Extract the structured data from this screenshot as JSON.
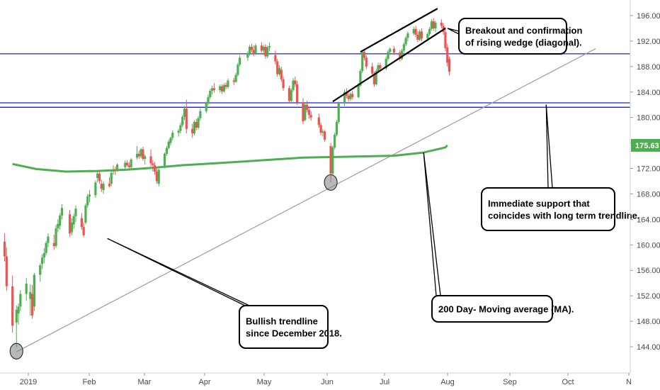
{
  "chart_data": {
    "type": "candlestick",
    "y_axis": {
      "range": [
        141.5,
        198.5
      ],
      "ticks": [
        "196.00",
        "192.00",
        "188.00",
        "184.00",
        "180.00",
        "176.00",
        "172.00",
        "168.00",
        "164.00",
        "160.00",
        "156.00",
        "152.00",
        "148.00",
        "144.00"
      ],
      "side": "right"
    },
    "x_axis": {
      "ticks": [
        "2019",
        "Feb",
        "Mar",
        "Apr",
        "May",
        "Jun",
        "Jul",
        "Aug",
        "Sep",
        "Oct",
        "N"
      ]
    },
    "current_price": {
      "label": "175.63",
      "value": 175.63,
      "color": "#4caf50"
    },
    "colors": {
      "up": "#4caf50",
      "down": "#ef5350",
      "horizontal_lines": "#1e22d6",
      "ma": "#4caf50",
      "trendline": "#9e9e9e"
    },
    "horizontal_levels": [
      190.0,
      182.3,
      181.6
    ],
    "moving_average": {
      "name": "200 Day- Moving average (MA)",
      "points": [
        [
          "2018-12-24",
          172.7
        ],
        [
          "2019-01-05",
          171.9
        ],
        [
          "2019-01-20",
          171.5
        ],
        [
          "2019-02-05",
          171.6
        ],
        [
          "2019-02-20",
          171.8
        ],
        [
          "2019-03-05",
          172.1
        ],
        [
          "2019-03-20",
          172.5
        ],
        [
          "2019-04-05",
          172.8
        ],
        [
          "2019-04-20",
          173.1
        ],
        [
          "2019-05-05",
          173.4
        ],
        [
          "2019-05-20",
          173.7
        ],
        [
          "2019-06-05",
          173.8
        ],
        [
          "2019-06-20",
          173.9
        ],
        [
          "2019-07-05",
          174.0
        ],
        [
          "2019-07-20",
          174.5
        ],
        [
          "2019-07-31",
          175.3
        ],
        [
          "2019-08-01",
          175.63
        ]
      ]
    },
    "trendline": {
      "from": [
        "2018-12-26",
        143.2
      ],
      "to": [
        "2019-10-15",
        190.8
      ],
      "label": "Bullish trendline since December 2018."
    },
    "rising_wedge": {
      "upper": [
        [
          "2019-06-18",
          190.3
        ],
        [
          "2019-07-27",
          197.1
        ]
      ],
      "lower": [
        [
          "2019-06-04",
          182.5
        ],
        [
          "2019-07-31",
          194.0
        ]
      ]
    },
    "highlight_circles": [
      [
        "2018-12-26",
        143.3
      ],
      [
        "2019-06-03",
        169.8
      ]
    ],
    "annotations": [
      {
        "id": "wedge",
        "lines": [
          "Breakout and confirmation",
          "of rising wedge (diagonal)."
        ],
        "pointer": [
          "2019-07-31",
          194.0
        ]
      },
      {
        "id": "support",
        "lines": [
          "Immediate support that",
          "coincides with long term trendline."
        ],
        "pointer": [
          "2019-09-20",
          182.0
        ]
      },
      {
        "id": "ma",
        "lines": [
          "200 Day- Moving average (MA)."
        ],
        "pointer": [
          "2019-07-20",
          174.5
        ]
      },
      {
        "id": "trend",
        "lines": [
          "Bullish trendline",
          "since December 2018."
        ],
        "pointer": [
          "2019-02-10",
          161.0
        ]
      }
    ],
    "candles": [
      [
        "2018-12-20",
        160.5,
        161.8,
        157.4,
        158.2
      ],
      [
        "2018-12-21",
        158.2,
        159.6,
        152.8,
        153.5
      ],
      [
        "2018-12-24",
        153.5,
        155.2,
        146.2,
        147.3
      ],
      [
        "2018-12-26",
        147.8,
        150.5,
        143.9,
        149.8
      ],
      [
        "2018-12-27",
        149.2,
        150.8,
        147.5,
        150.3
      ],
      [
        "2018-12-28",
        150.3,
        152.9,
        149.6,
        152.3
      ],
      [
        "2018-12-31",
        152.3,
        154.8,
        151.2,
        153.9
      ],
      [
        "2019-01-02",
        151.5,
        153.8,
        148.9,
        152.6
      ],
      [
        "2019-01-03",
        152.3,
        153.7,
        148.4,
        148.9
      ],
      [
        "2019-01-04",
        150.3,
        155.6,
        149.6,
        155.3
      ],
      [
        "2019-01-07",
        155.3,
        157.1,
        154.2,
        156.8
      ],
      [
        "2019-01-08",
        157.0,
        158.5,
        156.2,
        158.0
      ],
      [
        "2019-01-09",
        158.0,
        159.5,
        157.1,
        158.7
      ],
      [
        "2019-01-10",
        158.7,
        160.6,
        158.3,
        160.3
      ],
      [
        "2019-01-11",
        160.3,
        161.8,
        159.6,
        161.3
      ],
      [
        "2019-01-14",
        160.3,
        161.6,
        159.2,
        159.8
      ],
      [
        "2019-01-15",
        159.8,
        163.1,
        159.5,
        162.6
      ],
      [
        "2019-01-16",
        162.6,
        164.0,
        162.0,
        163.3
      ],
      [
        "2019-01-17",
        163.0,
        165.0,
        162.4,
        164.6
      ],
      [
        "2019-01-18",
        164.6,
        166.4,
        164.0,
        165.8
      ],
      [
        "2019-01-22",
        164.8,
        165.5,
        161.3,
        161.8
      ],
      [
        "2019-01-23",
        162.0,
        164.2,
        161.5,
        163.5
      ],
      [
        "2019-01-24",
        163.2,
        164.9,
        162.5,
        164.5
      ],
      [
        "2019-01-25",
        164.5,
        166.2,
        163.6,
        165.7
      ],
      [
        "2019-01-28",
        164.2,
        165.0,
        162.4,
        162.8
      ],
      [
        "2019-01-29",
        162.8,
        163.5,
        161.2,
        161.5
      ],
      [
        "2019-01-30",
        163.5,
        166.5,
        163.2,
        166.2
      ],
      [
        "2019-01-31",
        166.2,
        168.0,
        165.8,
        167.6
      ],
      [
        "2019-02-01",
        167.6,
        168.6,
        166.7,
        167.9
      ],
      [
        "2019-02-04",
        167.8,
        170.1,
        167.4,
        169.8
      ],
      [
        "2019-02-05",
        170.5,
        171.5,
        169.8,
        171.2
      ],
      [
        "2019-02-06",
        171.2,
        171.6,
        169.6,
        170.0
      ],
      [
        "2019-02-07",
        169.6,
        170.2,
        168.3,
        168.8
      ],
      [
        "2019-02-08",
        168.6,
        170.0,
        168.0,
        169.6
      ],
      [
        "2019-02-11",
        169.6,
        170.6,
        169.0,
        169.2
      ],
      [
        "2019-02-12",
        169.6,
        171.6,
        169.2,
        171.3
      ],
      [
        "2019-02-13",
        171.5,
        172.5,
        171.0,
        171.8
      ],
      [
        "2019-02-14",
        171.8,
        172.3,
        171.0,
        171.6
      ],
      [
        "2019-02-15",
        171.8,
        172.8,
        171.5,
        172.6
      ],
      [
        "2019-02-19",
        172.2,
        173.3,
        171.8,
        172.9
      ],
      [
        "2019-02-20",
        172.9,
        173.3,
        172.3,
        172.5
      ],
      [
        "2019-02-21",
        172.5,
        173.0,
        171.8,
        172.2
      ],
      [
        "2019-02-22",
        172.2,
        173.6,
        172.0,
        173.4
      ],
      [
        "2019-02-25",
        173.7,
        175.5,
        173.4,
        174.3
      ],
      [
        "2019-02-26",
        174.3,
        174.8,
        173.5,
        173.9
      ],
      [
        "2019-02-27",
        173.9,
        175.2,
        173.6,
        175.0
      ],
      [
        "2019-02-28",
        175.0,
        175.4,
        173.2,
        173.5
      ],
      [
        "2019-03-01",
        173.5,
        174.2,
        172.6,
        173.9
      ],
      [
        "2019-03-04",
        173.9,
        175.0,
        172.3,
        172.8
      ],
      [
        "2019-03-05",
        172.8,
        173.3,
        171.5,
        172.5
      ],
      [
        "2019-03-06",
        172.5,
        173.0,
        171.0,
        171.5
      ],
      [
        "2019-03-07",
        171.5,
        172.0,
        169.6,
        170.0
      ],
      [
        "2019-03-08",
        169.6,
        172.0,
        169.2,
        171.8
      ],
      [
        "2019-03-11",
        172.2,
        174.5,
        172.0,
        174.3
      ],
      [
        "2019-03-12",
        174.3,
        175.5,
        174.0,
        175.2
      ],
      [
        "2019-03-13",
        175.2,
        176.5,
        175.0,
        176.2
      ],
      [
        "2019-03-14",
        176.0,
        177.0,
        175.6,
        176.8
      ],
      [
        "2019-03-15",
        176.8,
        178.0,
        176.4,
        177.6
      ],
      [
        "2019-03-18",
        177.6,
        178.2,
        177.0,
        177.9
      ],
      [
        "2019-03-19",
        177.9,
        179.2,
        177.5,
        178.8
      ],
      [
        "2019-03-20",
        178.8,
        180.4,
        178.5,
        180.1
      ],
      [
        "2019-03-21",
        180.1,
        181.8,
        179.6,
        181.4
      ],
      [
        "2019-03-22",
        181.4,
        182.8,
        177.5,
        178.2
      ],
      [
        "2019-03-25",
        178.2,
        179.0,
        176.8,
        177.5
      ],
      [
        "2019-03-26",
        177.5,
        179.6,
        177.2,
        179.3
      ],
      [
        "2019-03-27",
        179.3,
        179.8,
        178.0,
        178.4
      ],
      [
        "2019-03-28",
        178.4,
        180.2,
        178.1,
        179.9
      ],
      [
        "2019-03-29",
        179.9,
        181.4,
        179.5,
        181.0
      ],
      [
        "2019-04-01",
        181.0,
        182.5,
        180.7,
        182.2
      ],
      [
        "2019-04-02",
        182.2,
        183.6,
        181.9,
        183.2
      ],
      [
        "2019-04-03",
        183.2,
        184.5,
        182.9,
        184.2
      ],
      [
        "2019-04-04",
        184.2,
        185.0,
        183.6,
        184.6
      ],
      [
        "2019-04-05",
        184.6,
        185.4,
        183.9,
        184.3
      ],
      [
        "2019-04-08",
        184.3,
        185.2,
        183.9,
        184.9
      ],
      [
        "2019-04-09",
        184.9,
        185.2,
        183.7,
        184.1
      ],
      [
        "2019-04-10",
        184.1,
        185.4,
        183.9,
        185.1
      ],
      [
        "2019-04-11",
        185.1,
        185.5,
        184.4,
        184.8
      ],
      [
        "2019-04-12",
        184.8,
        186.1,
        184.5,
        185.8
      ],
      [
        "2019-04-15",
        185.8,
        186.2,
        185.1,
        185.6
      ],
      [
        "2019-04-16",
        185.6,
        187.0,
        185.4,
        186.7
      ],
      [
        "2019-04-17",
        186.7,
        188.6,
        186.4,
        188.3
      ],
      [
        "2019-04-18",
        188.3,
        189.8,
        188.0,
        189.4
      ],
      [
        "2019-04-22",
        189.4,
        190.4,
        188.9,
        190.0
      ],
      [
        "2019-04-23",
        190.0,
        191.4,
        189.7,
        191.1
      ],
      [
        "2019-04-24",
        191.1,
        191.6,
        190.2,
        190.6
      ],
      [
        "2019-04-25",
        190.6,
        191.3,
        189.6,
        190.0
      ],
      [
        "2019-04-26",
        190.0,
        191.6,
        189.8,
        191.3
      ],
      [
        "2019-04-29",
        191.3,
        191.8,
        190.2,
        190.5
      ],
      [
        "2019-04-30",
        190.5,
        191.4,
        189.8,
        191.1
      ],
      [
        "2019-05-01",
        191.1,
        191.5,
        189.2,
        189.6
      ],
      [
        "2019-05-02",
        189.6,
        191.3,
        189.3,
        191.0
      ],
      [
        "2019-05-03",
        191.0,
        191.8,
        190.4,
        191.2
      ],
      [
        "2019-05-06",
        189.8,
        190.5,
        188.3,
        188.8
      ],
      [
        "2019-05-07",
        188.8,
        189.2,
        186.4,
        186.8
      ],
      [
        "2019-05-08",
        186.8,
        188.2,
        186.5,
        187.8
      ],
      [
        "2019-05-09",
        187.5,
        188.0,
        185.6,
        186.0
      ],
      [
        "2019-05-10",
        186.0,
        186.5,
        184.2,
        184.6
      ],
      [
        "2019-05-13",
        184.6,
        185.0,
        182.2,
        182.6
      ],
      [
        "2019-05-14",
        182.6,
        184.6,
        182.3,
        184.3
      ],
      [
        "2019-05-15",
        184.3,
        186.2,
        184.0,
        185.8
      ],
      [
        "2019-05-16",
        185.8,
        186.4,
        184.8,
        185.2
      ],
      [
        "2019-05-17",
        185.2,
        185.8,
        182.0,
        182.4
      ],
      [
        "2019-05-20",
        182.4,
        183.0,
        179.0,
        179.4
      ],
      [
        "2019-05-21",
        179.6,
        182.3,
        179.4,
        182.0
      ],
      [
        "2019-05-22",
        182.0,
        182.6,
        180.8,
        181.2
      ],
      [
        "2019-05-23",
        181.2,
        181.6,
        179.8,
        180.4
      ],
      [
        "2019-05-24",
        180.4,
        181.0,
        179.5,
        180.0
      ],
      [
        "2019-05-28",
        180.0,
        180.6,
        178.4,
        178.8
      ],
      [
        "2019-05-29",
        178.8,
        179.2,
        177.2,
        177.6
      ],
      [
        "2019-05-30",
        177.6,
        178.2,
        177.0,
        177.8
      ],
      [
        "2019-05-31",
        177.8,
        178.0,
        176.2,
        176.5
      ],
      [
        "2019-06-03",
        175.5,
        176.0,
        169.8,
        171.2
      ],
      [
        "2019-06-04",
        171.2,
        175.6,
        171.0,
        175.3
      ],
      [
        "2019-06-05",
        175.3,
        177.6,
        175.0,
        177.3
      ],
      [
        "2019-06-06",
        177.3,
        179.6,
        177.0,
        179.3
      ],
      [
        "2019-06-07",
        179.3,
        182.5,
        179.0,
        182.2
      ],
      [
        "2019-06-10",
        182.2,
        184.4,
        181.8,
        184.0
      ],
      [
        "2019-06-11",
        184.0,
        184.6,
        183.0,
        183.4
      ],
      [
        "2019-06-12",
        183.4,
        184.0,
        182.5,
        182.9
      ],
      [
        "2019-06-13",
        182.9,
        184.0,
        182.6,
        183.7
      ],
      [
        "2019-06-14",
        183.7,
        184.2,
        182.8,
        183.2
      ],
      [
        "2019-06-17",
        183.2,
        185.4,
        183.0,
        185.0
      ],
      [
        "2019-06-18",
        185.0,
        187.6,
        184.8,
        187.3
      ],
      [
        "2019-06-19",
        187.3,
        190.6,
        187.0,
        190.3
      ],
      [
        "2019-06-20",
        190.3,
        190.8,
        189.0,
        189.4
      ],
      [
        "2019-06-21",
        189.4,
        189.8,
        187.6,
        188.0
      ],
      [
        "2019-06-24",
        188.0,
        188.6,
        186.4,
        186.9
      ],
      [
        "2019-06-25",
        186.9,
        187.2,
        184.8,
        185.2
      ],
      [
        "2019-06-26",
        185.2,
        187.6,
        185.0,
        187.3
      ],
      [
        "2019-06-27",
        187.3,
        188.6,
        187.0,
        188.2
      ],
      [
        "2019-06-28",
        188.2,
        188.6,
        187.3,
        187.7
      ],
      [
        "2019-07-01",
        187.7,
        189.6,
        187.4,
        189.2
      ],
      [
        "2019-07-02",
        189.2,
        190.6,
        188.9,
        190.3
      ],
      [
        "2019-07-03",
        190.3,
        191.0,
        189.8,
        190.8
      ],
      [
        "2019-07-05",
        190.8,
        191.2,
        189.8,
        190.2
      ],
      [
        "2019-07-08",
        190.2,
        190.6,
        188.8,
        189.2
      ],
      [
        "2019-07-09",
        189.2,
        190.8,
        189.0,
        190.5
      ],
      [
        "2019-07-10",
        190.5,
        191.8,
        190.2,
        191.5
      ],
      [
        "2019-07-11",
        191.5,
        192.8,
        191.2,
        192.5
      ],
      [
        "2019-07-12",
        192.5,
        193.5,
        192.0,
        193.2
      ],
      [
        "2019-07-15",
        193.2,
        194.2,
        192.9,
        193.9
      ],
      [
        "2019-07-16",
        193.9,
        194.4,
        192.6,
        193.0
      ],
      [
        "2019-07-17",
        193.0,
        193.6,
        191.8,
        192.2
      ],
      [
        "2019-07-18",
        192.2,
        193.8,
        192.0,
        193.5
      ],
      [
        "2019-07-19",
        193.5,
        194.0,
        192.0,
        192.4
      ],
      [
        "2019-07-22",
        192.4,
        193.4,
        192.0,
        193.1
      ],
      [
        "2019-07-23",
        193.1,
        194.2,
        192.8,
        193.9
      ],
      [
        "2019-07-24",
        193.9,
        195.4,
        193.6,
        195.1
      ],
      [
        "2019-07-25",
        195.1,
        195.6,
        193.6,
        194.0
      ],
      [
        "2019-07-26",
        194.0,
        195.2,
        193.4,
        194.9
      ],
      [
        "2019-07-29",
        194.9,
        195.4,
        194.0,
        194.4
      ],
      [
        "2019-07-30",
        194.4,
        194.8,
        193.0,
        193.4
      ],
      [
        "2019-07-31",
        193.4,
        194.2,
        190.4,
        190.9
      ],
      [
        "2019-08-01",
        191.0,
        191.6,
        188.0,
        188.6
      ],
      [
        "2019-08-02",
        189.2,
        189.6,
        186.6,
        187.2
      ]
    ]
  }
}
